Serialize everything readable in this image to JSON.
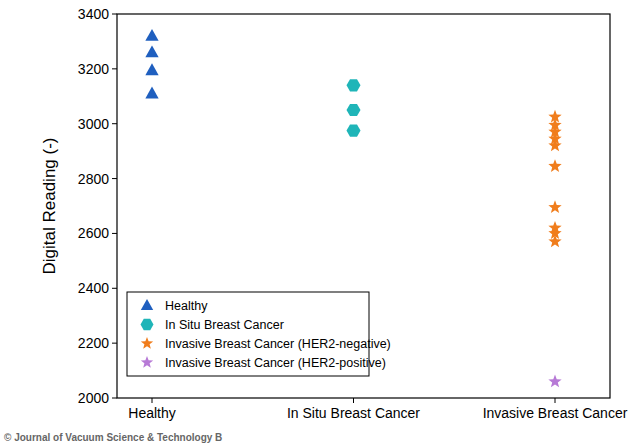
{
  "chart_data": {
    "type": "scatter",
    "y_label": "Digital Reading (-)",
    "source": "© Journal of Vacuum Science & Technology B",
    "categories": [
      "Healthy",
      "In Situ Breast Cancer",
      "Invasive Breast Cancer"
    ],
    "ylim": [
      2000,
      3400
    ],
    "yticks": [
      2000,
      2200,
      2400,
      2600,
      2800,
      3000,
      3200,
      3400
    ],
    "legend": "lower left",
    "grid": false,
    "series": [
      {
        "name": "Healthy",
        "color": "#1f5fbf",
        "marker": "triangle",
        "x": [
          "Healthy",
          "Healthy",
          "Healthy",
          "Healthy"
        ],
        "values": [
          3320,
          3260,
          3195,
          3110
        ]
      },
      {
        "name": "In Situ Breast Cancer",
        "color": "#1fb5b8",
        "marker": "hexagon",
        "x": [
          "In Situ Breast Cancer",
          "In Situ Breast Cancer",
          "In Situ Breast Cancer"
        ],
        "values": [
          3140,
          3050,
          2975
        ]
      },
      {
        "name": "Invasive Breast Cancer (HER2-negative)",
        "color": "#f07d1c",
        "marker": "star",
        "x": [
          "Invasive Breast Cancer",
          "Invasive Breast Cancer",
          "Invasive Breast Cancer",
          "Invasive Breast Cancer",
          "Invasive Breast Cancer",
          "Invasive Breast Cancer",
          "Invasive Breast Cancer",
          "Invasive Breast Cancer",
          "Invasive Breast Cancer",
          "Invasive Breast Cancer"
        ],
        "values": [
          3025,
          2995,
          2970,
          2945,
          2920,
          2845,
          2695,
          2620,
          2600,
          2570
        ]
      },
      {
        "name": "Invasive Breast Cancer (HER2-positive)",
        "color": "#b77ad6",
        "marker": "star",
        "x": [
          "Invasive Breast Cancer"
        ],
        "values": [
          2060
        ]
      }
    ]
  }
}
